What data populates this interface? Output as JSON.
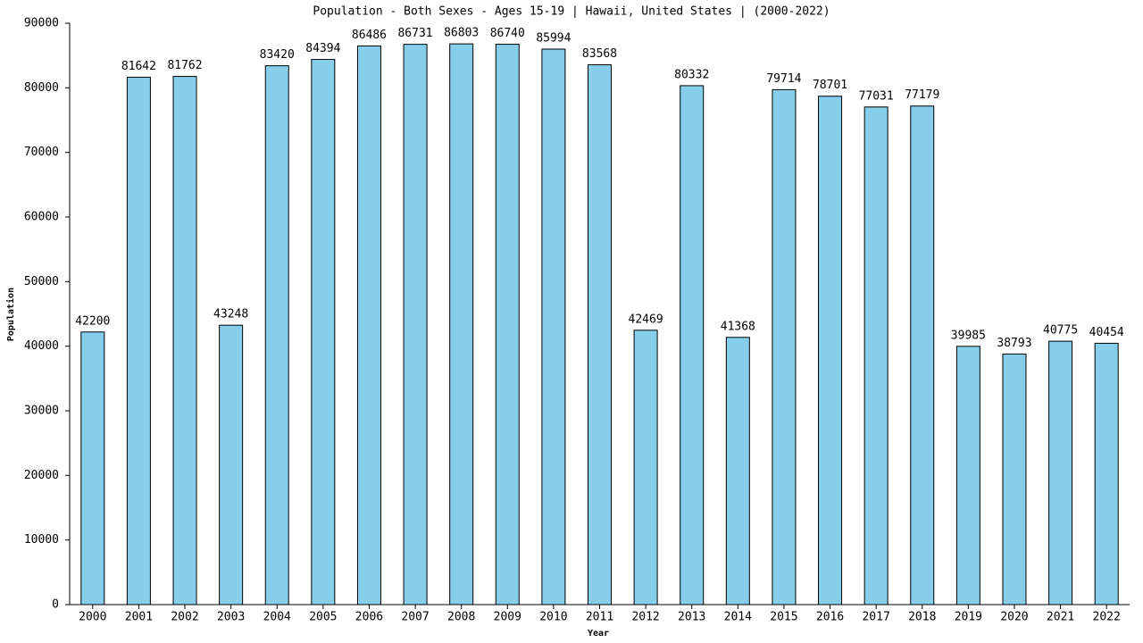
{
  "chart_data": {
    "type": "bar",
    "title": "Population - Both Sexes - Ages 15-19 | Hawaii, United States |  (2000-2022)",
    "x_label": "Year",
    "y_label": "Population",
    "categories": [
      "2000",
      "2001",
      "2002",
      "2003",
      "2004",
      "2005",
      "2006",
      "2007",
      "2008",
      "2009",
      "2010",
      "2011",
      "2012",
      "2013",
      "2014",
      "2015",
      "2016",
      "2017",
      "2018",
      "2019",
      "2020",
      "2021",
      "2022"
    ],
    "values": [
      42200,
      81642,
      81762,
      43248,
      83420,
      84394,
      86486,
      86731,
      86803,
      86740,
      85994,
      83568,
      42469,
      80332,
      41368,
      79714,
      78701,
      77031,
      77179,
      39985,
      38793,
      40775,
      40454
    ],
    "color": "#87ceeb",
    "ylim": [
      0,
      90000
    ],
    "yticks": [
      0,
      10000,
      20000,
      30000,
      40000,
      50000,
      60000,
      70000,
      80000,
      90000
    ]
  }
}
